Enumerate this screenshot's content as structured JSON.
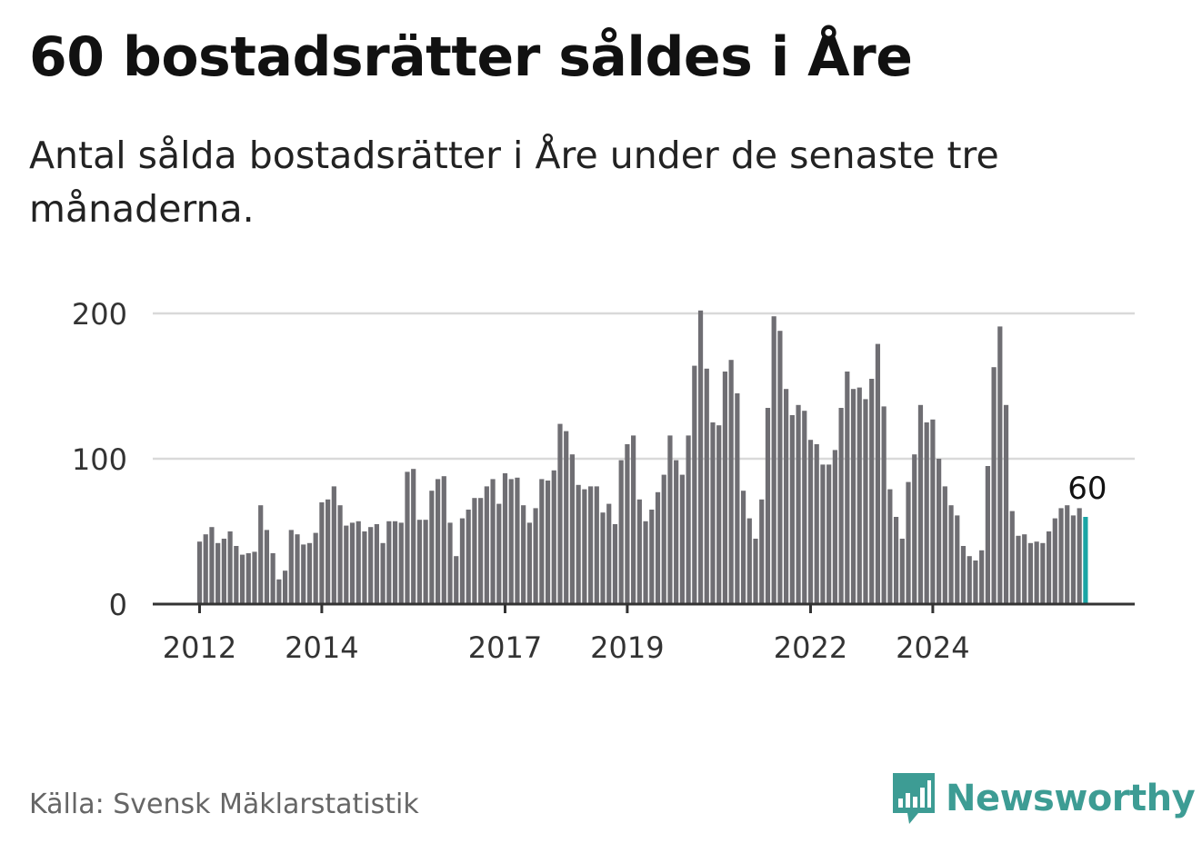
{
  "header": {
    "title": "60 bostadsrätter såldes i Åre",
    "subtitle": "Antal sålda bostadsrätter i Åre under de senaste tre månaderna."
  },
  "footer": {
    "source": "Källa: Svensk Mäklarstatistik",
    "brand": "Newsworthy",
    "logo_icon": "newsworthy-logo-icon"
  },
  "colors": {
    "bar": "#6f6e73",
    "highlight": "#1aa5a5",
    "grid": "#d9d9d9",
    "axis": "#333333",
    "brand": "#3d9c94"
  },
  "chart_data": {
    "type": "bar",
    "title": "60 bostadsrätter såldes i Åre",
    "xlabel": "",
    "ylabel": "",
    "ylim": [
      0,
      200
    ],
    "y_ticks": [
      0,
      100,
      200
    ],
    "x_ticks": [
      {
        "label": "2012",
        "index": 0
      },
      {
        "label": "2014",
        "index": 20
      },
      {
        "label": "2017",
        "index": 50
      },
      {
        "label": "2019",
        "index": 70
      },
      {
        "label": "2022",
        "index": 100
      },
      {
        "label": "2024",
        "index": 120
      }
    ],
    "highlight_label": "60",
    "grid": true,
    "values": [
      43,
      48,
      53,
      42,
      45,
      50,
      40,
      34,
      35,
      36,
      68,
      51,
      35,
      17,
      23,
      51,
      48,
      41,
      42,
      49,
      70,
      72,
      81,
      68,
      54,
      56,
      57,
      50,
      53,
      55,
      42,
      57,
      57,
      56,
      91,
      93,
      58,
      58,
      78,
      86,
      88,
      56,
      33,
      59,
      65,
      73,
      73,
      81,
      86,
      69,
      90,
      86,
      87,
      68,
      56,
      66,
      86,
      85,
      92,
      124,
      119,
      103,
      82,
      79,
      81,
      81,
      63,
      69,
      55,
      99,
      110,
      116,
      72,
      57,
      65,
      77,
      89,
      116,
      99,
      89,
      116,
      164,
      202,
      162,
      125,
      123,
      160,
      168,
      145,
      78,
      59,
      45,
      72,
      135,
      198,
      188,
      148,
      130,
      137,
      133,
      113,
      110,
      96,
      96,
      106,
      135,
      160,
      148,
      149,
      141,
      155,
      179,
      136,
      79,
      60,
      45,
      84,
      103,
      137,
      125,
      127,
      100,
      81,
      68,
      61,
      40,
      33,
      30,
      37,
      95,
      163,
      191,
      137,
      64,
      47,
      48,
      42,
      43,
      42,
      50,
      59,
      66,
      68,
      61,
      66,
      60
    ]
  }
}
